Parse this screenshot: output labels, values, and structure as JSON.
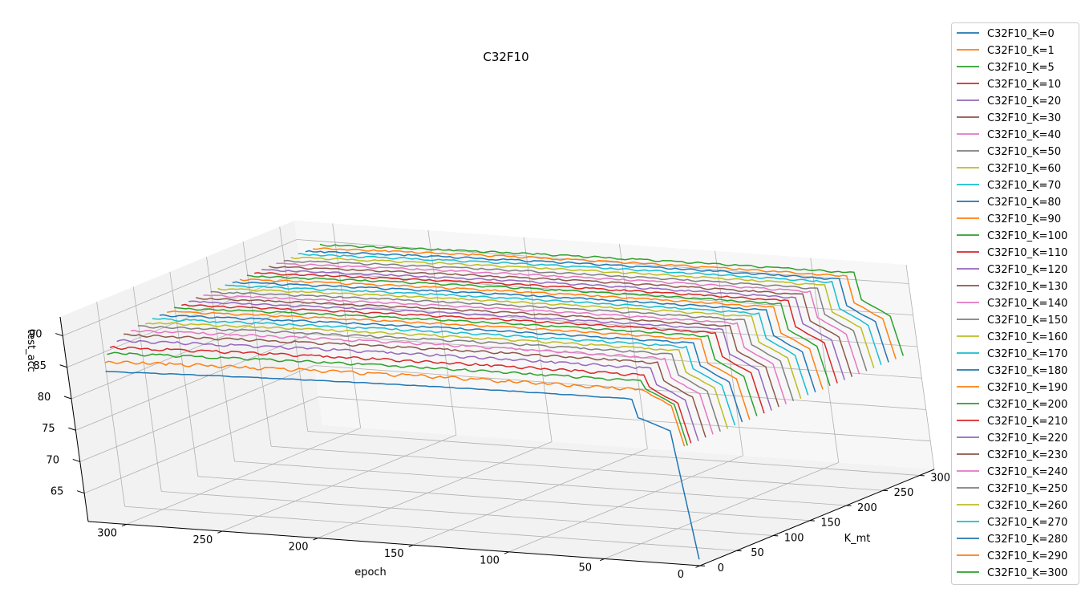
{
  "chart_data": {
    "type": "line",
    "projection": "3d",
    "title": "C32F10",
    "xlabel": "epoch",
    "ylabel": "K_mt",
    "zlabel": "test_acc",
    "xlim": [
      0,
      320
    ],
    "ylim": [
      0,
      320
    ],
    "zlim": [
      60.5,
      93
    ],
    "xticks": [
      "0",
      "50",
      "100",
      "150",
      "200",
      "250",
      "300"
    ],
    "yticks": [
      "0",
      "50",
      "100",
      "150",
      "200",
      "250",
      "300"
    ],
    "zticks": [
      "65",
      "70",
      "75",
      "80",
      "85",
      "90"
    ],
    "grid": true,
    "legend_position": "right",
    "curve_shape": {
      "start_epoch": 0,
      "end_epoch": 300,
      "first_epoch_value_k0": 61.5,
      "first_epoch_value_others": 79.5
    },
    "series": [
      {
        "name": "C32F10_K=0",
        "k": 0,
        "color": "#1f77b4",
        "final_acc": 86.5,
        "noise": 0.1
      },
      {
        "name": "C32F10_K=1",
        "k": 1,
        "color": "#ff7f0e",
        "final_acc": 88.2,
        "noise": 0.55
      },
      {
        "name": "C32F10_K=5",
        "k": 5,
        "color": "#2ca02c",
        "final_acc": 89.3,
        "noise": 0.4
      },
      {
        "name": "C32F10_K=10",
        "k": 10,
        "color": "#d62728",
        "final_acc": 90.0,
        "noise": 0.45
      },
      {
        "name": "C32F10_K=20",
        "k": 20,
        "color": "#9467bd",
        "final_acc": 90.6,
        "noise": 0.45
      },
      {
        "name": "C32F10_K=30",
        "k": 30,
        "color": "#8c564b",
        "final_acc": 91.0,
        "noise": 0.4
      },
      {
        "name": "C32F10_K=40",
        "k": 40,
        "color": "#e377c2",
        "final_acc": 91.2,
        "noise": 0.4
      },
      {
        "name": "C32F10_K=50",
        "k": 50,
        "color": "#7f7f7f",
        "final_acc": 91.4,
        "noise": 0.35
      },
      {
        "name": "C32F10_K=60",
        "k": 60,
        "color": "#bcbd22",
        "final_acc": 91.5,
        "noise": 0.35
      },
      {
        "name": "C32F10_K=70",
        "k": 70,
        "color": "#17becf",
        "final_acc": 91.6,
        "noise": 0.35
      },
      {
        "name": "C32F10_K=80",
        "k": 80,
        "color": "#1f77b4",
        "final_acc": 91.7,
        "noise": 0.3
      },
      {
        "name": "C32F10_K=90",
        "k": 90,
        "color": "#ff7f0e",
        "final_acc": 91.8,
        "noise": 0.3
      },
      {
        "name": "C32F10_K=100",
        "k": 100,
        "color": "#2ca02c",
        "final_acc": 91.85,
        "noise": 0.3
      },
      {
        "name": "C32F10_K=110",
        "k": 110,
        "color": "#d62728",
        "final_acc": 91.9,
        "noise": 0.3
      },
      {
        "name": "C32F10_K=120",
        "k": 120,
        "color": "#9467bd",
        "final_acc": 91.95,
        "noise": 0.3
      },
      {
        "name": "C32F10_K=130",
        "k": 130,
        "color": "#8c564b",
        "final_acc": 92.0,
        "noise": 0.3
      },
      {
        "name": "C32F10_K=140",
        "k": 140,
        "color": "#e377c2",
        "final_acc": 92.0,
        "noise": 0.3
      },
      {
        "name": "C32F10_K=150",
        "k": 150,
        "color": "#7f7f7f",
        "final_acc": 92.05,
        "noise": 0.3
      },
      {
        "name": "C32F10_K=160",
        "k": 160,
        "color": "#bcbd22",
        "final_acc": 92.1,
        "noise": 0.3
      },
      {
        "name": "C32F10_K=170",
        "k": 170,
        "color": "#17becf",
        "final_acc": 92.1,
        "noise": 0.3
      },
      {
        "name": "C32F10_K=180",
        "k": 180,
        "color": "#1f77b4",
        "final_acc": 92.15,
        "noise": 0.3
      },
      {
        "name": "C32F10_K=190",
        "k": 190,
        "color": "#ff7f0e",
        "final_acc": 92.15,
        "noise": 0.3
      },
      {
        "name": "C32F10_K=200",
        "k": 200,
        "color": "#2ca02c",
        "final_acc": 92.2,
        "noise": 0.3
      },
      {
        "name": "C32F10_K=210",
        "k": 210,
        "color": "#d62728",
        "final_acc": 92.2,
        "noise": 0.3
      },
      {
        "name": "C32F10_K=220",
        "k": 220,
        "color": "#9467bd",
        "final_acc": 92.2,
        "noise": 0.3
      },
      {
        "name": "C32F10_K=230",
        "k": 230,
        "color": "#8c564b",
        "final_acc": 92.25,
        "noise": 0.3
      },
      {
        "name": "C32F10_K=240",
        "k": 240,
        "color": "#e377c2",
        "final_acc": 92.25,
        "noise": 0.3
      },
      {
        "name": "C32F10_K=250",
        "k": 250,
        "color": "#7f7f7f",
        "final_acc": 92.25,
        "noise": 0.3
      },
      {
        "name": "C32F10_K=260",
        "k": 260,
        "color": "#bcbd22",
        "final_acc": 92.3,
        "noise": 0.3
      },
      {
        "name": "C32F10_K=270",
        "k": 270,
        "color": "#17becf",
        "final_acc": 92.3,
        "noise": 0.3
      },
      {
        "name": "C32F10_K=280",
        "k": 280,
        "color": "#1f77b4",
        "final_acc": 92.3,
        "noise": 0.3
      },
      {
        "name": "C32F10_K=290",
        "k": 290,
        "color": "#ff7f0e",
        "final_acc": 92.3,
        "noise": 0.3
      },
      {
        "name": "C32F10_K=300",
        "k": 300,
        "color": "#2ca02c",
        "final_acc": 92.35,
        "noise": 0.3
      }
    ]
  }
}
